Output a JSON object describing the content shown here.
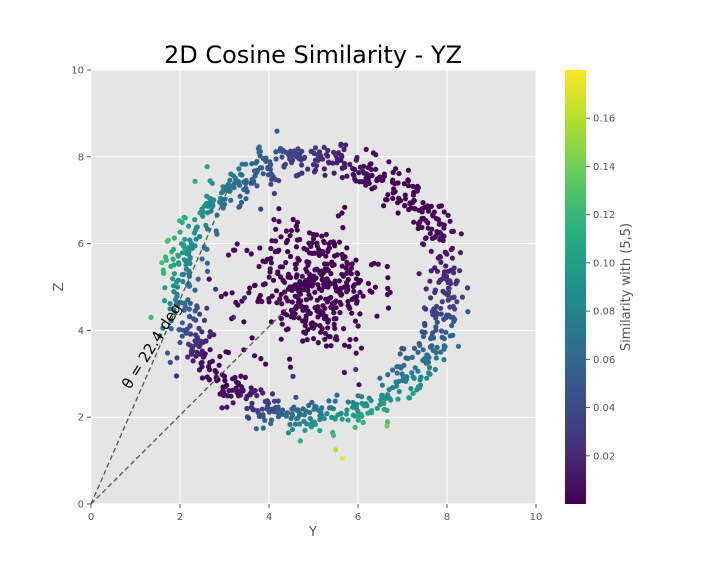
{
  "chart_data": {
    "type": "scatter",
    "title": "2D Cosine Similarity - YZ",
    "xlabel": "Y",
    "ylabel": "Z",
    "xlim": [
      0,
      10
    ],
    "ylim": [
      0,
      10
    ],
    "xticks": [
      "0",
      "2",
      "4",
      "6",
      "8",
      "10"
    ],
    "yticks": [
      "0",
      "2",
      "4",
      "6",
      "8",
      "10"
    ],
    "grid": true,
    "background": "#e5e5e5",
    "colormap": "viridis",
    "colorbar": {
      "label": "Similarity with (5,5)",
      "range": [
        0.0,
        0.18
      ],
      "ticks": [
        "0.02",
        "0.04",
        "0.06",
        "0.08",
        "0.10",
        "0.12",
        "0.14",
        "0.16"
      ]
    },
    "annotation": "θ = 22.4 deg",
    "reference_point": [
      5,
      5
    ],
    "angle_lines": [
      {
        "from": [
          0,
          0
        ],
        "to": [
          3.1,
          7.3
        ]
      },
      {
        "from": [
          0,
          0
        ],
        "to": [
          4.4,
          4.5
        ]
      }
    ],
    "series": [
      {
        "shape": "ring",
        "center": [
          5.0,
          5.0
        ],
        "radius": 3.0,
        "radius_spread": 0.22,
        "count": 900,
        "similarity_range": [
          0.0,
          0.13
        ]
      },
      {
        "shape": "cluster",
        "center": [
          5.0,
          5.0
        ],
        "spread": 0.75,
        "count": 400,
        "similarity_range": [
          0.0,
          0.02
        ]
      }
    ],
    "outliers": [
      {
        "x": 5.65,
        "y": 1.05,
        "similarity": 0.175
      },
      {
        "x": 5.5,
        "y": 1.25,
        "similarity": 0.16
      },
      {
        "x": 1.35,
        "y": 4.3,
        "similarity": 0.12
      },
      {
        "x": 6.65,
        "y": 1.8,
        "similarity": 0.14
      },
      {
        "x": 2.8,
        "y": 4.95,
        "similarity": 0.03
      },
      {
        "x": 3.45,
        "y": 4.75,
        "similarity": 0.02
      },
      {
        "x": 3.2,
        "y": 4.3,
        "similarity": 0.02
      },
      {
        "x": 5.95,
        "y": 3.1,
        "similarity": 0.03
      }
    ]
  }
}
